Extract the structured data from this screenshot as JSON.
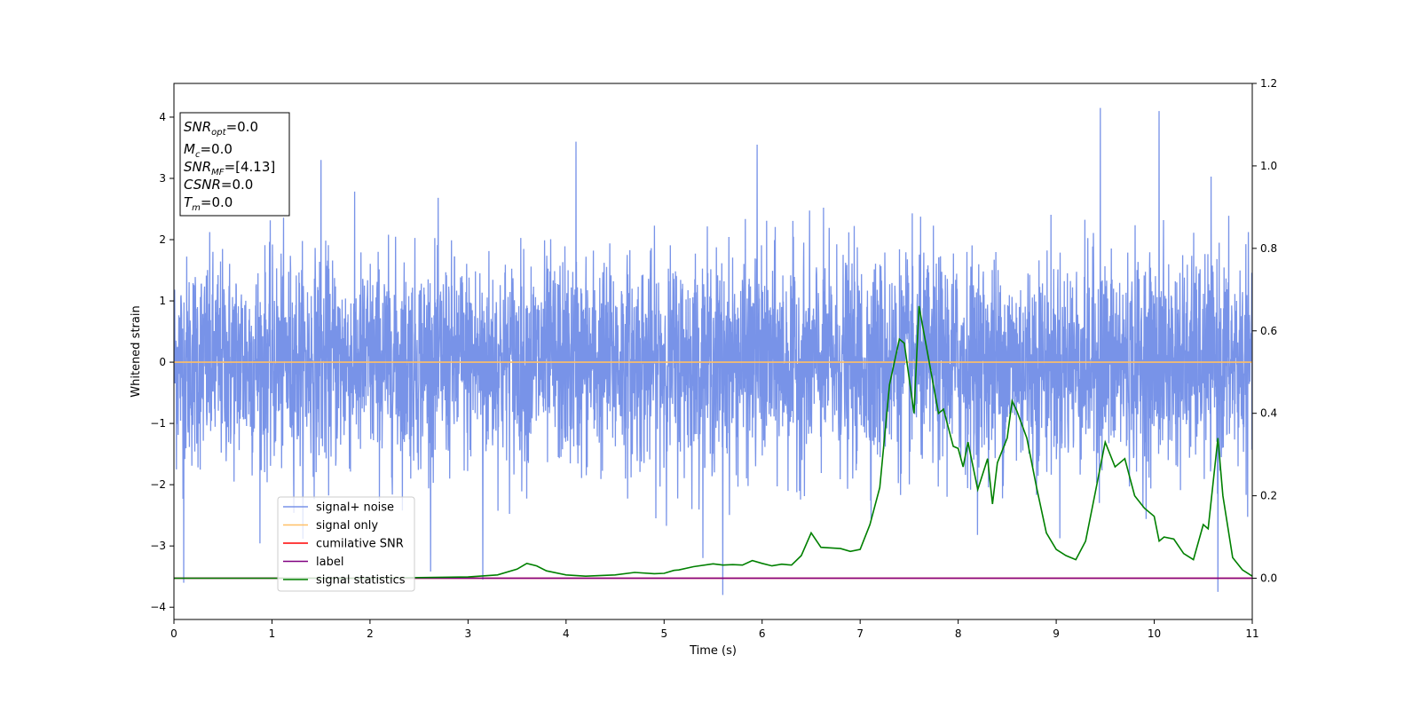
{
  "chart_data": {
    "type": "line",
    "title": "",
    "xlabel": "Time (s)",
    "ylabel": "Whitened strain",
    "y2label": "",
    "xlim": [
      0,
      11
    ],
    "ylim": [
      -4.2,
      4.55
    ],
    "y2lim": [
      -0.1,
      1.2
    ],
    "x_ticks": [
      0,
      1,
      2,
      3,
      4,
      5,
      6,
      7,
      8,
      9,
      10,
      11
    ],
    "y_ticks": [
      -4,
      -3,
      -2,
      -1,
      0,
      1,
      2,
      3,
      4
    ],
    "y2_ticks": [
      0.0,
      0.2,
      0.4,
      0.6,
      0.8,
      1.0,
      1.2
    ],
    "grid": false,
    "legend_position": "lower-left",
    "annotation": {
      "lines": [
        {
          "name": "SNR",
          "sub": "opt",
          "value": "=0.0"
        },
        {
          "name": "M",
          "sub": "c",
          "value": "=0.0"
        },
        {
          "name": "SNR",
          "sub": "MF",
          "value": "=[4.13]"
        },
        {
          "name": "CSNR",
          "sub": "",
          "value": "=0.0"
        },
        {
          "name": "T",
          "sub": "m",
          "value": "=0.0"
        }
      ]
    },
    "series": [
      {
        "name": "signal+ noise",
        "color": "#7893e8",
        "axis": "left",
        "kind": "noise",
        "noise_std": 0.85,
        "noise_peaks": [
          [
            0.1,
            -3.6
          ],
          [
            1.5,
            3.3
          ],
          [
            4.1,
            3.6
          ],
          [
            5.6,
            -3.8
          ],
          [
            5.95,
            3.55
          ],
          [
            9.45,
            4.15
          ],
          [
            10.05,
            4.1
          ],
          [
            10.65,
            -3.75
          ],
          [
            3.15,
            -3.55
          ]
        ]
      },
      {
        "name": "signal only",
        "color": "#ffbf66",
        "axis": "left",
        "x": [
          0,
          11
        ],
        "y": [
          0,
          0
        ]
      },
      {
        "name": "cumilative SNR",
        "color": "#ff0000",
        "axis": "right",
        "x": [
          0,
          11
        ],
        "y": [
          0,
          0
        ]
      },
      {
        "name": "label",
        "color": "#800080",
        "axis": "right",
        "x": [
          0,
          11
        ],
        "y": [
          0,
          0
        ]
      },
      {
        "name": "signal statistics",
        "color": "#008000",
        "axis": "right",
        "x": [
          0,
          0.5,
          1,
          2,
          3,
          3.3,
          3.5,
          3.6,
          3.7,
          3.8,
          4.0,
          4.2,
          4.5,
          4.7,
          4.9,
          5.0,
          5.1,
          5.15,
          5.3,
          5.5,
          5.6,
          5.7,
          5.8,
          5.9,
          6.0,
          6.1,
          6.2,
          6.3,
          6.4,
          6.5,
          6.6,
          6.8,
          6.9,
          7.0,
          7.1,
          7.2,
          7.3,
          7.4,
          7.45,
          7.55,
          7.6,
          7.7,
          7.8,
          7.85,
          7.95,
          8.0,
          8.05,
          8.1,
          8.2,
          8.3,
          8.35,
          8.4,
          8.5,
          8.55,
          8.6,
          8.7,
          8.8,
          8.9,
          9.0,
          9.1,
          9.2,
          9.3,
          9.4,
          9.5,
          9.6,
          9.7,
          9.8,
          9.9,
          10.0,
          10.05,
          10.1,
          10.2,
          10.3,
          10.4,
          10.5,
          10.55,
          10.65,
          10.7,
          10.8,
          10.9,
          11.0
        ],
        "y": [
          0.0,
          0.0,
          0.0,
          0.0,
          0.003,
          0.008,
          0.022,
          0.036,
          0.03,
          0.018,
          0.008,
          0.005,
          0.008,
          0.014,
          0.011,
          0.012,
          0.019,
          0.02,
          0.028,
          0.035,
          0.032,
          0.033,
          0.032,
          0.043,
          0.036,
          0.03,
          0.034,
          0.032,
          0.055,
          0.11,
          0.075,
          0.072,
          0.065,
          0.07,
          0.13,
          0.22,
          0.47,
          0.58,
          0.57,
          0.4,
          0.66,
          0.53,
          0.4,
          0.41,
          0.32,
          0.315,
          0.27,
          0.33,
          0.215,
          0.29,
          0.18,
          0.28,
          0.34,
          0.43,
          0.405,
          0.34,
          0.22,
          0.11,
          0.07,
          0.055,
          0.045,
          0.09,
          0.21,
          0.33,
          0.27,
          0.29,
          0.2,
          0.17,
          0.15,
          0.09,
          0.1,
          0.095,
          0.06,
          0.045,
          0.13,
          0.12,
          0.34,
          0.2,
          0.05,
          0.02,
          0.005
        ]
      }
    ]
  }
}
